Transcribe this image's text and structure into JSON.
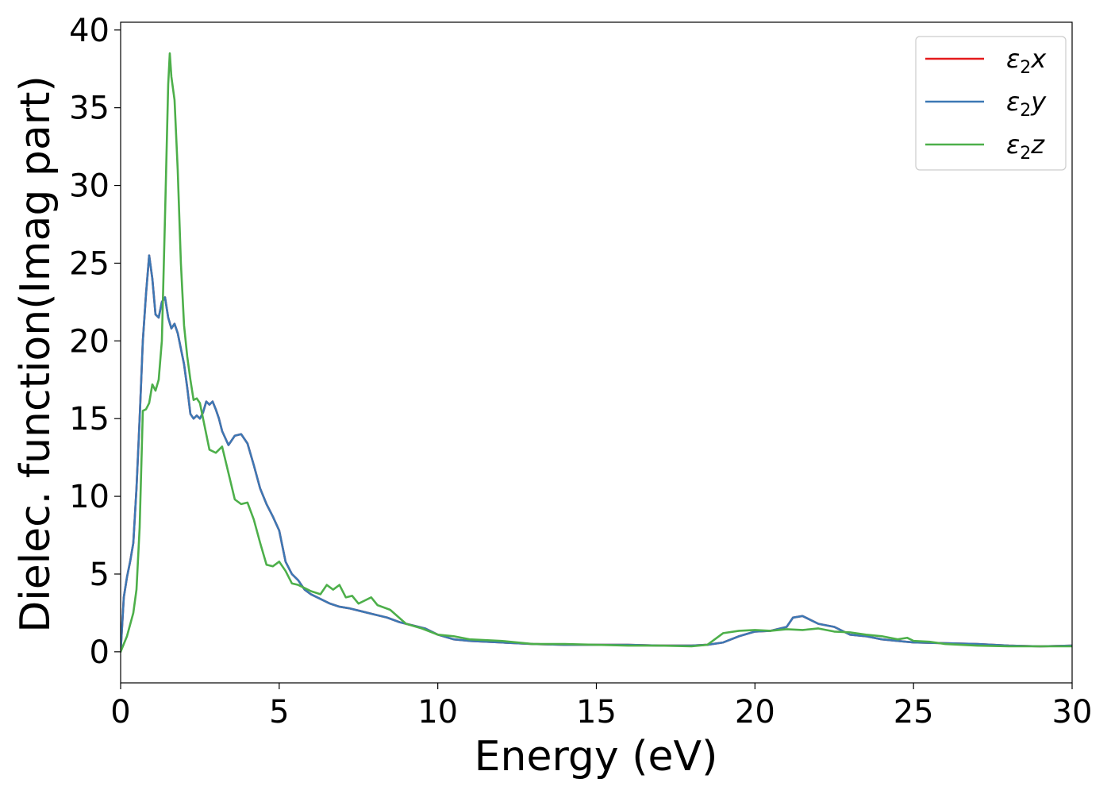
{
  "chart_data": {
    "type": "line",
    "xlabel": "Energy (eV)",
    "ylabel": "Dielec. function(Imag part)",
    "xlim": [
      0,
      30
    ],
    "ylim": [
      -2,
      40.5
    ],
    "xticks": [
      0,
      5,
      10,
      15,
      20,
      25,
      30
    ],
    "yticks": [
      0,
      5,
      10,
      15,
      20,
      25,
      30,
      35,
      40
    ],
    "grid": false,
    "legend_position": "top-right",
    "series": [
      {
        "name": "ε₂x",
        "legend_base": "ε",
        "legend_sub": "2",
        "legend_suffix": "x",
        "color": "#e41a1c",
        "x": [
          0,
          0.1,
          0.2,
          0.3,
          0.4,
          0.5,
          0.6,
          0.7,
          0.8,
          0.9,
          1.0,
          1.1,
          1.2,
          1.3,
          1.4,
          1.5,
          1.6,
          1.7,
          1.8,
          1.9,
          2.0,
          2.1,
          2.2,
          2.3,
          2.4,
          2.5,
          2.6,
          2.7,
          2.8,
          2.9,
          3.0,
          3.1,
          3.2,
          3.4,
          3.6,
          3.8,
          4.0,
          4.2,
          4.4,
          4.6,
          4.8,
          5.0,
          5.2,
          5.4,
          5.6,
          5.8,
          6.0,
          6.3,
          6.6,
          6.9,
          7.2,
          7.6,
          8.0,
          8.4,
          8.8,
          9.2,
          9.6,
          10.0,
          10.5,
          11.0,
          12.0,
          13.0,
          14.0,
          15.0,
          16.0,
          17.0,
          18.0,
          18.5,
          19.0,
          19.5,
          20.0,
          20.5,
          21.0,
          21.2,
          21.5,
          22.0,
          22.5,
          23.0,
          23.5,
          24.0,
          25.0,
          26.0,
          27.0,
          28.0,
          29.0,
          30.0
        ],
        "values": [
          0,
          3.5,
          4.8,
          5.8,
          7.0,
          10.5,
          15.0,
          20.0,
          23.0,
          25.5,
          24.0,
          21.7,
          21.5,
          22.5,
          22.8,
          21.5,
          20.8,
          21.1,
          20.5,
          19.5,
          18.5,
          17.0,
          15.3,
          15.0,
          15.2,
          15.0,
          15.4,
          16.1,
          15.9,
          16.1,
          15.6,
          15.0,
          14.2,
          13.3,
          13.9,
          14.0,
          13.4,
          12.0,
          10.5,
          9.5,
          8.7,
          7.8,
          5.8,
          5.0,
          4.6,
          4.0,
          3.7,
          3.4,
          3.1,
          2.9,
          2.8,
          2.6,
          2.4,
          2.2,
          1.9,
          1.7,
          1.5,
          1.1,
          0.8,
          0.7,
          0.6,
          0.5,
          0.45,
          0.45,
          0.45,
          0.4,
          0.4,
          0.45,
          0.6,
          1.0,
          1.3,
          1.35,
          1.6,
          2.2,
          2.3,
          1.8,
          1.6,
          1.1,
          1.0,
          0.8,
          0.6,
          0.55,
          0.5,
          0.4,
          0.35,
          0.4
        ]
      },
      {
        "name": "ε₂y",
        "legend_base": "ε",
        "legend_sub": "2",
        "legend_suffix": "y",
        "color": "#3c78b4",
        "x": [
          0,
          0.1,
          0.2,
          0.3,
          0.4,
          0.5,
          0.6,
          0.7,
          0.8,
          0.9,
          1.0,
          1.1,
          1.2,
          1.3,
          1.4,
          1.5,
          1.6,
          1.7,
          1.8,
          1.9,
          2.0,
          2.1,
          2.2,
          2.3,
          2.4,
          2.5,
          2.6,
          2.7,
          2.8,
          2.9,
          3.0,
          3.1,
          3.2,
          3.4,
          3.6,
          3.8,
          4.0,
          4.2,
          4.4,
          4.6,
          4.8,
          5.0,
          5.2,
          5.4,
          5.6,
          5.8,
          6.0,
          6.3,
          6.6,
          6.9,
          7.2,
          7.6,
          8.0,
          8.4,
          8.8,
          9.2,
          9.6,
          10.0,
          10.5,
          11.0,
          12.0,
          13.0,
          14.0,
          15.0,
          16.0,
          17.0,
          18.0,
          18.5,
          19.0,
          19.5,
          20.0,
          20.5,
          21.0,
          21.2,
          21.5,
          22.0,
          22.5,
          23.0,
          23.5,
          24.0,
          25.0,
          26.0,
          27.0,
          28.0,
          29.0,
          30.0
        ],
        "values": [
          0,
          3.5,
          4.8,
          5.8,
          7.0,
          10.5,
          15.0,
          20.0,
          23.0,
          25.5,
          24.0,
          21.7,
          21.5,
          22.5,
          22.8,
          21.5,
          20.8,
          21.1,
          20.5,
          19.5,
          18.5,
          17.0,
          15.3,
          15.0,
          15.2,
          15.0,
          15.4,
          16.1,
          15.9,
          16.1,
          15.6,
          15.0,
          14.2,
          13.3,
          13.9,
          14.0,
          13.4,
          12.0,
          10.5,
          9.5,
          8.7,
          7.8,
          5.8,
          5.0,
          4.6,
          4.0,
          3.7,
          3.4,
          3.1,
          2.9,
          2.8,
          2.6,
          2.4,
          2.2,
          1.9,
          1.7,
          1.5,
          1.1,
          0.8,
          0.7,
          0.6,
          0.5,
          0.45,
          0.45,
          0.45,
          0.4,
          0.4,
          0.45,
          0.6,
          1.0,
          1.3,
          1.35,
          1.6,
          2.2,
          2.3,
          1.8,
          1.6,
          1.1,
          1.0,
          0.8,
          0.6,
          0.55,
          0.5,
          0.4,
          0.35,
          0.4
        ]
      },
      {
        "name": "ε₂z",
        "legend_base": "ε",
        "legend_sub": "2",
        "legend_suffix": "z",
        "color": "#4daf4a",
        "x": [
          0,
          0.2,
          0.4,
          0.5,
          0.6,
          0.7,
          0.8,
          0.9,
          1.0,
          1.1,
          1.2,
          1.3,
          1.4,
          1.5,
          1.55,
          1.6,
          1.7,
          1.8,
          1.9,
          2.0,
          2.1,
          2.2,
          2.3,
          2.4,
          2.5,
          2.6,
          2.8,
          3.0,
          3.2,
          3.4,
          3.6,
          3.8,
          4.0,
          4.2,
          4.4,
          4.6,
          4.8,
          5.0,
          5.2,
          5.4,
          5.6,
          5.8,
          6.0,
          6.3,
          6.5,
          6.7,
          6.9,
          7.1,
          7.3,
          7.5,
          7.7,
          7.9,
          8.1,
          8.5,
          9.0,
          9.5,
          10.0,
          10.5,
          11.0,
          12.0,
          13.0,
          14.0,
          15.0,
          16.0,
          17.0,
          18.0,
          18.5,
          19.0,
          19.5,
          20.0,
          20.5,
          21.0,
          21.5,
          22.0,
          22.5,
          23.0,
          23.5,
          24.0,
          24.5,
          24.8,
          25.0,
          25.5,
          26.0,
          27.0,
          28.0,
          29.0,
          30.0
        ],
        "values": [
          0,
          1.0,
          2.5,
          4.0,
          8.0,
          15.5,
          15.6,
          16.0,
          17.2,
          16.8,
          17.5,
          20.0,
          28.0,
          36.5,
          38.5,
          37.0,
          35.5,
          31.0,
          25.0,
          21.0,
          19.0,
          17.5,
          16.2,
          16.3,
          16.0,
          15.0,
          13.0,
          12.8,
          13.2,
          11.5,
          9.8,
          9.5,
          9.6,
          8.5,
          7.0,
          5.6,
          5.5,
          5.8,
          5.2,
          4.4,
          4.3,
          4.1,
          3.9,
          3.7,
          4.3,
          4.0,
          4.3,
          3.5,
          3.6,
          3.1,
          3.3,
          3.5,
          3.0,
          2.7,
          1.8,
          1.5,
          1.1,
          1.0,
          0.8,
          0.7,
          0.5,
          0.5,
          0.45,
          0.4,
          0.4,
          0.35,
          0.45,
          1.2,
          1.35,
          1.4,
          1.35,
          1.45,
          1.4,
          1.5,
          1.3,
          1.25,
          1.1,
          1.0,
          0.8,
          0.9,
          0.7,
          0.65,
          0.5,
          0.4,
          0.35,
          0.35,
          0.35
        ]
      }
    ]
  }
}
